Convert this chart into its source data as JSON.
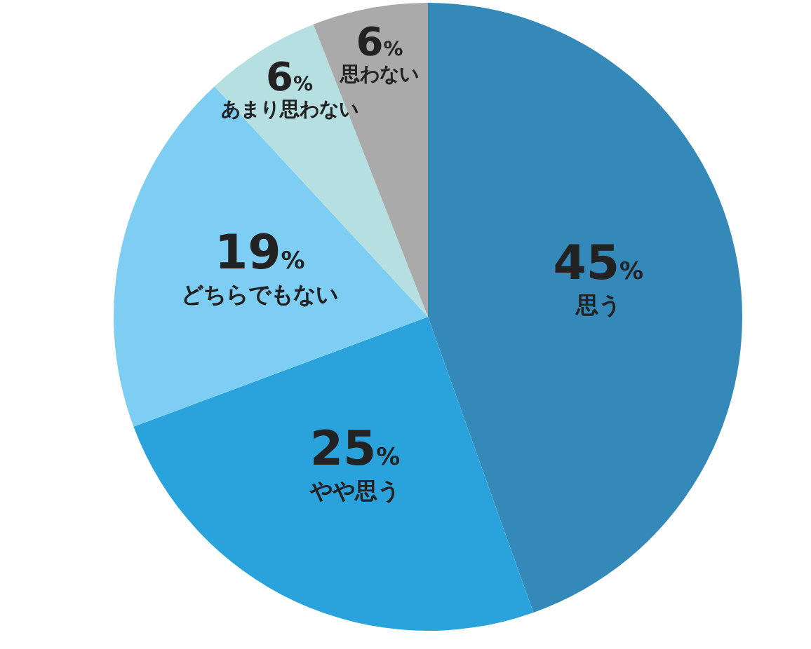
{
  "chart_data": {
    "type": "pie",
    "categories": [
      "思う",
      "やや思う",
      "どちらでもない",
      "あまり思わない",
      "思わない"
    ],
    "values": [
      45,
      25,
      19,
      6,
      6
    ],
    "colors": [
      "#3589b8",
      "#2aa3dc",
      "#7ecdf3",
      "#b5dfe0",
      "#aaaaaa"
    ],
    "value_labels": [
      "45%",
      "25%",
      "19%",
      "6%",
      "6%"
    ],
    "legend": false
  }
}
